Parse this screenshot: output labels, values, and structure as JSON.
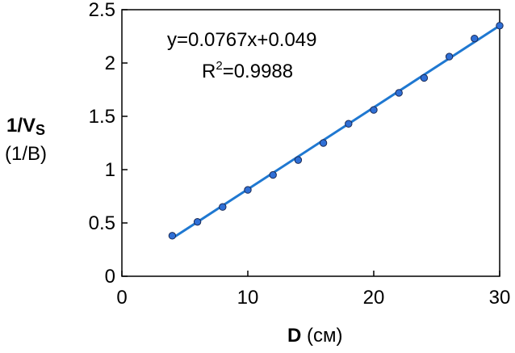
{
  "chart_data": {
    "type": "scatter",
    "x": [
      4,
      6,
      8,
      10,
      12,
      14,
      16,
      18,
      20,
      22,
      24,
      26,
      28,
      30
    ],
    "y": [
      0.38,
      0.51,
      0.65,
      0.81,
      0.95,
      1.09,
      1.25,
      1.43,
      1.56,
      1.72,
      1.86,
      2.06,
      2.23,
      2.35
    ],
    "fit": {
      "slope": 0.0767,
      "intercept": 0.049,
      "x_range": [
        4,
        30
      ]
    },
    "xlim": [
      0,
      30
    ],
    "ylim": [
      0,
      2.5
    ],
    "xticks": [
      "0",
      "10",
      "20",
      "30"
    ],
    "yticks": [
      "0",
      "0.5",
      "1",
      "1.5",
      "2",
      "2.5"
    ],
    "xlabel": {
      "bold": "D",
      "rest": " (см)"
    },
    "ylabel": {
      "bold_main": "1/V",
      "bold_sub": "S",
      "unit": "(1/B)"
    },
    "annotation": {
      "equation": "y=0.0767x+0.049",
      "r2_prefix": "R",
      "r2_sup": "2",
      "r2_value": "=0.9988"
    },
    "grid": false,
    "legend": "none",
    "colors": {
      "marker_fill": "#2f6fd6",
      "marker_stroke": "#1a2a55",
      "fit_line": "#1f78d1",
      "axes": "#000000"
    }
  }
}
